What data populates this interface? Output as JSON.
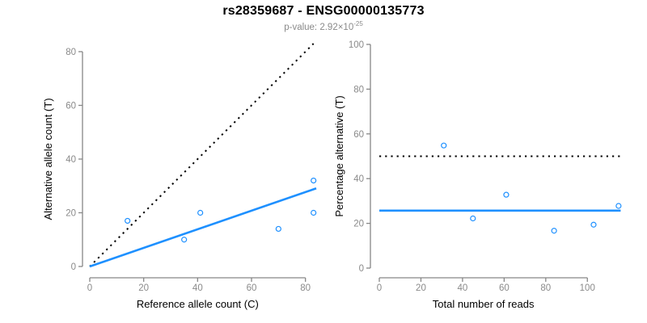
{
  "header": {
    "title": "rs28359687 - ENSG00000135773",
    "subtitle_main": "p-value: 2.92×10",
    "subtitle_exponent": "-25"
  },
  "colors": {
    "accent_blue": "#1E90FF",
    "axis_gray": "#878787",
    "tick_label_gray": "#8a8a8a",
    "label_black": "#000000",
    "dotted_line_black": "#000000",
    "background": "#ffffff"
  },
  "chart_data": [
    {
      "type": "scatter",
      "panel": "left",
      "xlabel": "Reference allele count (C)",
      "ylabel": "Alternative allele count (T)",
      "xlim": [
        0,
        84
      ],
      "ylim": [
        0,
        83
      ],
      "xticks": [
        0,
        20,
        40,
        60,
        80
      ],
      "yticks": [
        0,
        20,
        40,
        60,
        80
      ],
      "grid": false,
      "legend": null,
      "points": [
        [
          14,
          17
        ],
        [
          35,
          10
        ],
        [
          41,
          20
        ],
        [
          70,
          14
        ],
        [
          83,
          20
        ],
        [
          83,
          32
        ]
      ],
      "lines": [
        {
          "name": "identity-line",
          "style": "dotted",
          "color": "#000000",
          "from": [
            0,
            0
          ],
          "to": [
            83,
            83
          ]
        },
        {
          "name": "fit-line",
          "style": "solid",
          "color": "#1E90FF",
          "from": [
            0,
            0
          ],
          "to": [
            84,
            29.1
          ]
        }
      ]
    },
    {
      "type": "scatter",
      "panel": "right",
      "xlabel": "Total number of reads",
      "ylabel": "Percentage alternative (T)",
      "xlim": [
        0,
        117
      ],
      "ylim": [
        0,
        100
      ],
      "xticks": [
        0,
        20,
        40,
        60,
        80,
        100
      ],
      "yticks": [
        0,
        20,
        40,
        60,
        80,
        100
      ],
      "grid": false,
      "legend": null,
      "points": [
        [
          31,
          54.8
        ],
        [
          45,
          22.2
        ],
        [
          61,
          32.8
        ],
        [
          84,
          16.7
        ],
        [
          103,
          19.4
        ],
        [
          115,
          27.8
        ]
      ],
      "lines": [
        {
          "name": "expected-50pct-line",
          "style": "dotted",
          "color": "#000000",
          "from": [
            0,
            50
          ],
          "to": [
            116,
            50
          ]
        },
        {
          "name": "mean-percentage-line",
          "style": "solid",
          "color": "#1E90FF",
          "from": [
            0,
            25.7
          ],
          "to": [
            116,
            25.7
          ]
        }
      ]
    }
  ]
}
